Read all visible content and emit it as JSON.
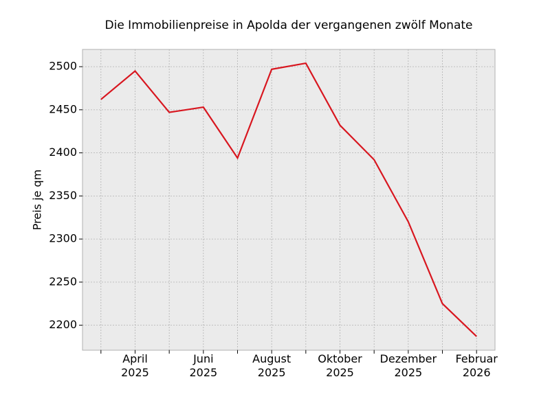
{
  "chart_data": {
    "type": "line",
    "title": "Die Immobilienpreise in Apolda der vergangenen zwölf Monate",
    "y_label": "Preis je qm",
    "categories": [
      null,
      "April\n2025",
      null,
      "Juni\n2025",
      null,
      "August\n2025",
      null,
      "Oktober\n2025",
      null,
      "Dezember\n2025",
      null,
      "Februar\n2026"
    ],
    "series": [
      {
        "name": "Preis je qm",
        "color": "#d8161f",
        "values": [
          2462,
          2495,
          2447,
          2453,
          2394,
          2497,
          2504,
          2432,
          2392,
          2320,
          2225,
          2187
        ]
      }
    ],
    "ylim": [
      2171,
      2520
    ],
    "yticks": [
      2200,
      2250,
      2300,
      2350,
      2400,
      2450,
      2500
    ],
    "grid": true
  }
}
